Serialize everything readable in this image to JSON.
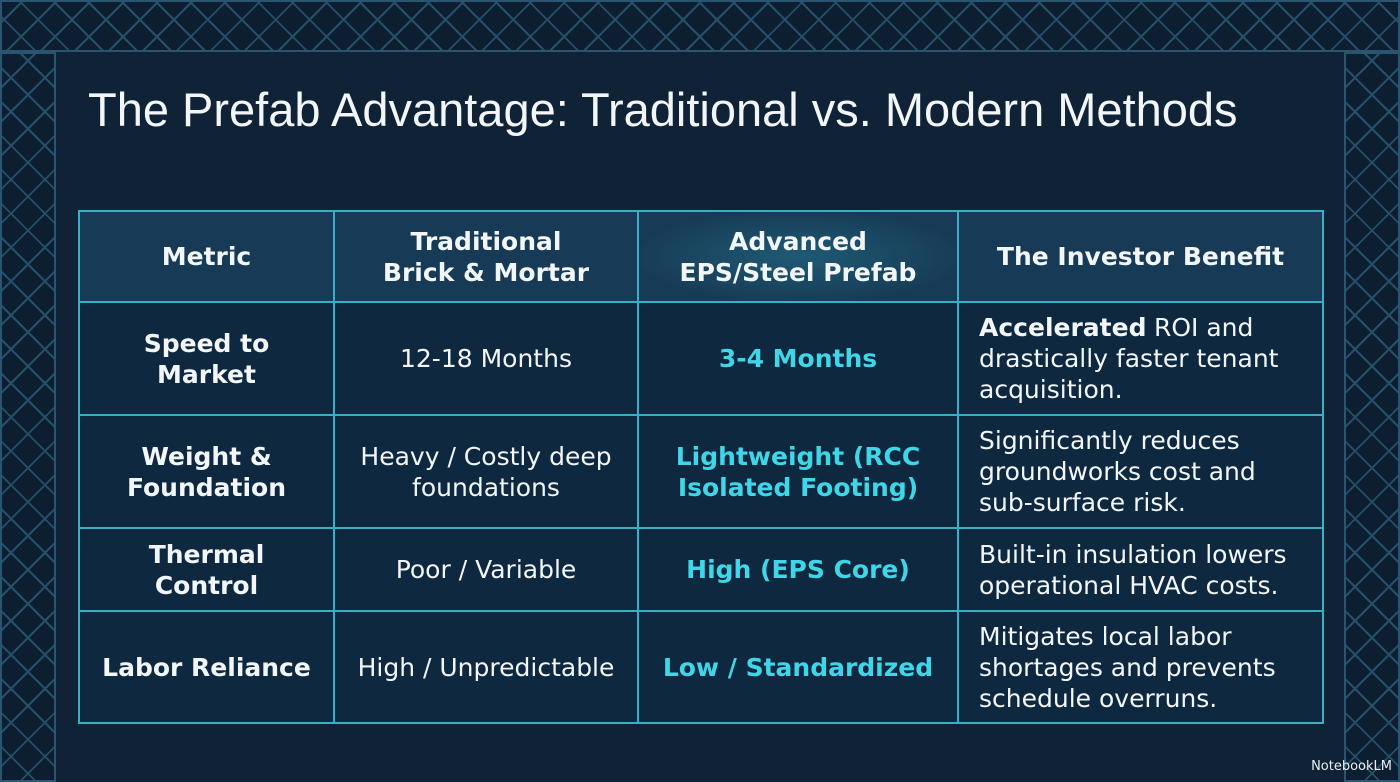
{
  "title": "The Prefab Advantage: Traditional vs. Modern Methods",
  "table": {
    "header": [
      {
        "lines": [
          "Metric"
        ]
      },
      {
        "lines": [
          "Traditional",
          "Brick & Mortar"
        ]
      },
      {
        "lines": [
          "Advanced",
          "EPS/Steel Prefab"
        ]
      },
      {
        "lines": [
          "The Investor Benefit"
        ]
      }
    ],
    "rows": [
      [
        "Speed to Market",
        "12-18 Months",
        "3-4 Months",
        {
          "bold": "Accelerated",
          "text": "ROI and drastically faster tenant acquisition."
        }
      ],
      [
        "Weight & Foundation",
        "Heavy / Costly deep foundations",
        "Lightweight (RCC Isolated Footing)",
        {
          "text": "Significantly reduces groundworks cost and sub-surface risk."
        }
      ],
      [
        "Thermal Control",
        "Poor / Variable",
        "High (EPS Core)",
        {
          "text": "Built-in insulation lowers operational HVAC costs."
        }
      ],
      [
        "Labor Reliance",
        "High / Unpredictable",
        "Low / Standardized",
        {
          "text": "Mitigates local labor shortages and prevents schedule overruns."
        }
      ]
    ]
  },
  "footer": "NotebookLM"
}
